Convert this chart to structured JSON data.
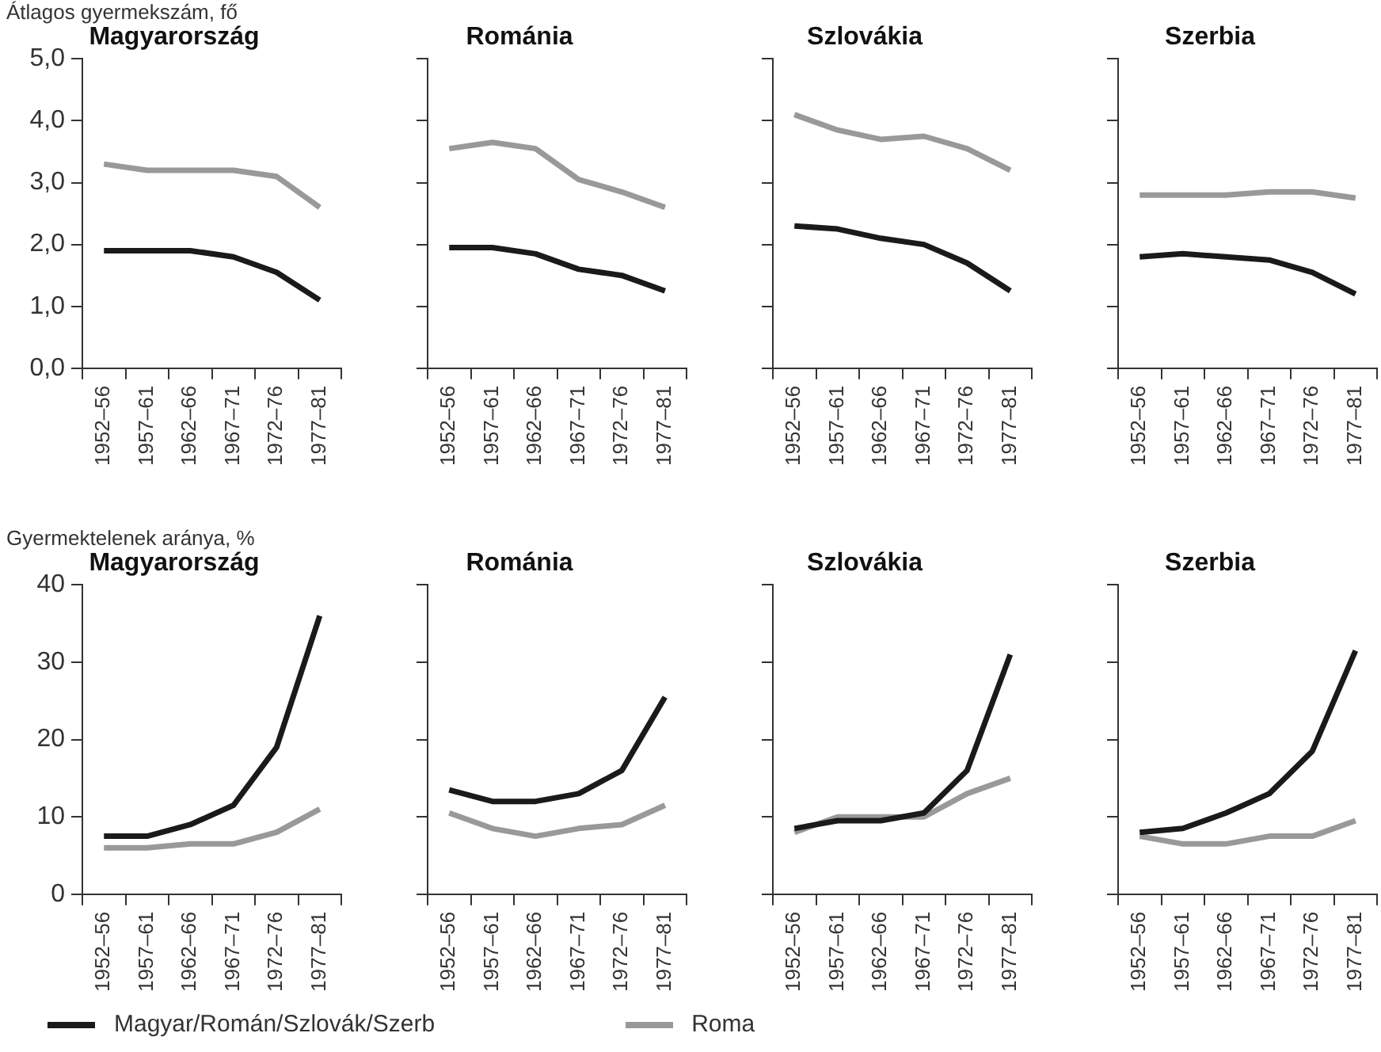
{
  "chart_data": [
    {
      "type": "line",
      "title": "Magyarország",
      "ylabel": "Átlagos gyermekszám, fő",
      "categories": [
        "1952–56",
        "1957–61",
        "1962–66",
        "1967–71",
        "1972–76",
        "1977–81"
      ],
      "series": [
        {
          "name": "Magyar/Román/Szlovák/Szerb",
          "color": "#1a1a1a",
          "values": [
            1.9,
            1.9,
            1.9,
            1.8,
            1.55,
            1.1
          ]
        },
        {
          "name": "Roma",
          "color": "#999999",
          "values": [
            3.3,
            3.2,
            3.2,
            3.2,
            3.1,
            2.6
          ]
        }
      ],
      "ylim": [
        0,
        5
      ],
      "yticks": [
        {
          "value": 0,
          "label": "0,0"
        },
        {
          "value": 1,
          "label": "1,0"
        },
        {
          "value": 2,
          "label": "2,0"
        },
        {
          "value": 3,
          "label": "3,0"
        },
        {
          "value": 4,
          "label": "4,0"
        },
        {
          "value": 5,
          "label": "5,0"
        }
      ],
      "grid": false,
      "marker": "none",
      "line_style": "solid",
      "legend": "bottom"
    },
    {
      "type": "line",
      "title": "Románia",
      "categories": [
        "1952–56",
        "1957–61",
        "1962–66",
        "1967–71",
        "1972–76",
        "1977–81"
      ],
      "series": [
        {
          "color": "#1a1a1a",
          "values": [
            1.95,
            1.95,
            1.85,
            1.6,
            1.5,
            1.25
          ]
        },
        {
          "color": "#999999",
          "values": [
            3.55,
            3.65,
            3.55,
            3.05,
            2.85,
            2.6
          ]
        }
      ],
      "ylim": [
        0,
        5
      ],
      "yticks": [
        0,
        1,
        2,
        3,
        4,
        5
      ],
      "tick_labels": "x",
      "grid": false,
      "marker": "none",
      "line_style": "solid"
    },
    {
      "type": "line",
      "title": "Szlovákia",
      "categories": [
        "1952–56",
        "1957–61",
        "1962–66",
        "1967–71",
        "1972–76",
        "1977–81"
      ],
      "series": [
        {
          "color": "#1a1a1a",
          "values": [
            2.3,
            2.25,
            2.1,
            2.0,
            1.7,
            1.25
          ]
        },
        {
          "color": "#999999",
          "values": [
            4.1,
            3.85,
            3.7,
            3.75,
            3.55,
            3.2
          ]
        }
      ],
      "ylim": [
        0,
        5
      ],
      "yticks": [
        0,
        1,
        2,
        3,
        4,
        5
      ],
      "tick_labels": "x",
      "grid": false,
      "marker": "none",
      "line_style": "solid"
    },
    {
      "type": "line",
      "title": "Szerbia",
      "categories": [
        "1952–56",
        "1957–61",
        "1962–66",
        "1967–71",
        "1972–76",
        "1977–81"
      ],
      "series": [
        {
          "color": "#1a1a1a",
          "values": [
            1.8,
            1.85,
            1.8,
            1.75,
            1.55,
            1.2
          ]
        },
        {
          "color": "#999999",
          "values": [
            2.8,
            2.8,
            2.8,
            2.85,
            2.85,
            2.75
          ]
        }
      ],
      "ylim": [
        0,
        5
      ],
      "yticks": [
        0,
        1,
        2,
        3,
        4,
        5
      ],
      "tick_labels": "x",
      "grid": false,
      "marker": "none",
      "line_style": "solid"
    },
    {
      "type": "line",
      "title": "Magyarország",
      "ylabel": "Gyermektelenek aránya, %",
      "categories": [
        "1952–56",
        "1957–61",
        "1962–66",
        "1967–71",
        "1972–76",
        "1977–81"
      ],
      "series": [
        {
          "color": "#1a1a1a",
          "values": [
            7.5,
            7.5,
            9,
            11.5,
            19,
            36
          ]
        },
        {
          "color": "#999999",
          "values": [
            6,
            6,
            6.5,
            6.5,
            8,
            11
          ]
        }
      ],
      "ylim": [
        0,
        40
      ],
      "yticks": [
        0,
        10,
        20,
        30,
        40
      ],
      "grid": false,
      "marker": "none",
      "line_style": "solid"
    },
    {
      "type": "line",
      "title": "Románia",
      "categories": [
        "1952–56",
        "1957–61",
        "1962–66",
        "1967–71",
        "1972–76",
        "1977–81"
      ],
      "series": [
        {
          "color": "#1a1a1a",
          "values": [
            13.5,
            12,
            12,
            13,
            16,
            25.5
          ]
        },
        {
          "color": "#999999",
          "values": [
            10.5,
            8.5,
            7.5,
            8.5,
            9,
            11.5
          ]
        }
      ],
      "ylim": [
        0,
        40
      ],
      "yticks": [
        0,
        10,
        20,
        30,
        40
      ],
      "tick_labels": "x",
      "grid": false,
      "marker": "none",
      "line_style": "solid"
    },
    {
      "type": "line",
      "title": "Szlovákia",
      "categories": [
        "1952–56",
        "1957–61",
        "1962–66",
        "1967–71",
        "1972–76",
        "1977–81"
      ],
      "series": [
        {
          "color": "#1a1a1a",
          "values": [
            8.5,
            9.5,
            9.5,
            10.5,
            16,
            31
          ]
        },
        {
          "color": "#999999",
          "values": [
            8,
            10,
            10,
            10,
            13,
            15
          ]
        }
      ],
      "ylim": [
        0,
        40
      ],
      "yticks": [
        0,
        10,
        20,
        30,
        40
      ],
      "tick_labels": "x",
      "grid": false,
      "marker": "none",
      "line_style": "solid"
    },
    {
      "type": "line",
      "title": "Szerbia",
      "categories": [
        "1952–56",
        "1957–61",
        "1962–66",
        "1967–71",
        "1972–76",
        "1977–81"
      ],
      "series": [
        {
          "color": "#1a1a1a",
          "values": [
            8,
            8.5,
            10.5,
            13,
            18.5,
            31.5
          ]
        },
        {
          "color": "#999999",
          "values": [
            7.5,
            6.5,
            6.5,
            7.5,
            7.5,
            9.5
          ]
        }
      ],
      "ylim": [
        0,
        40
      ],
      "yticks": [
        0,
        10,
        20,
        30,
        40
      ],
      "tick_labels": "x",
      "grid": false,
      "marker": "none",
      "line_style": "solid"
    }
  ]
}
